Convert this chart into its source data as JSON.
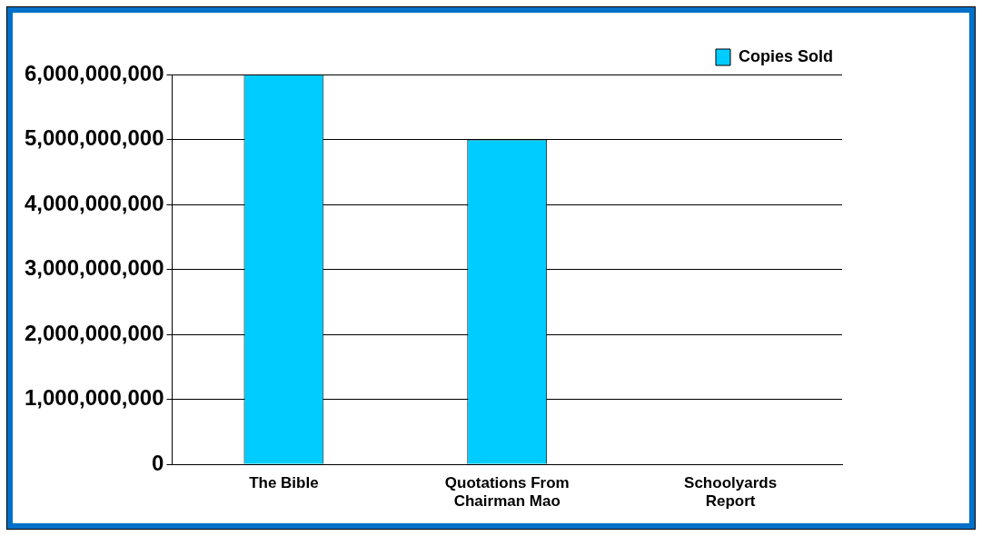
{
  "chart_data": {
    "type": "bar",
    "categories": [
      "The Bible",
      "Quotations From Chairman Mao",
      "Schoolyards Report"
    ],
    "series": [
      {
        "name": "Copies Sold",
        "color": "#00ccff",
        "values": [
          6000000000,
          5000000000,
          0
        ]
      }
    ],
    "ylim": [
      0,
      6000000000
    ],
    "yticks": [
      0,
      {
        "value": 1000000000,
        "label": "1,000,000,000"
      },
      {
        "value": 2000000000,
        "label": "2,000,000,000"
      },
      {
        "value": 3000000000,
        "label": "3,000,000,000"
      },
      {
        "value": 4000000000,
        "label": "4,000,000,000"
      },
      {
        "value": 5000000000,
        "label": "5,000,000,000"
      },
      {
        "value": 6000000000,
        "label": "6,000,000,000"
      }
    ],
    "grid": "y",
    "legend": "top right"
  }
}
